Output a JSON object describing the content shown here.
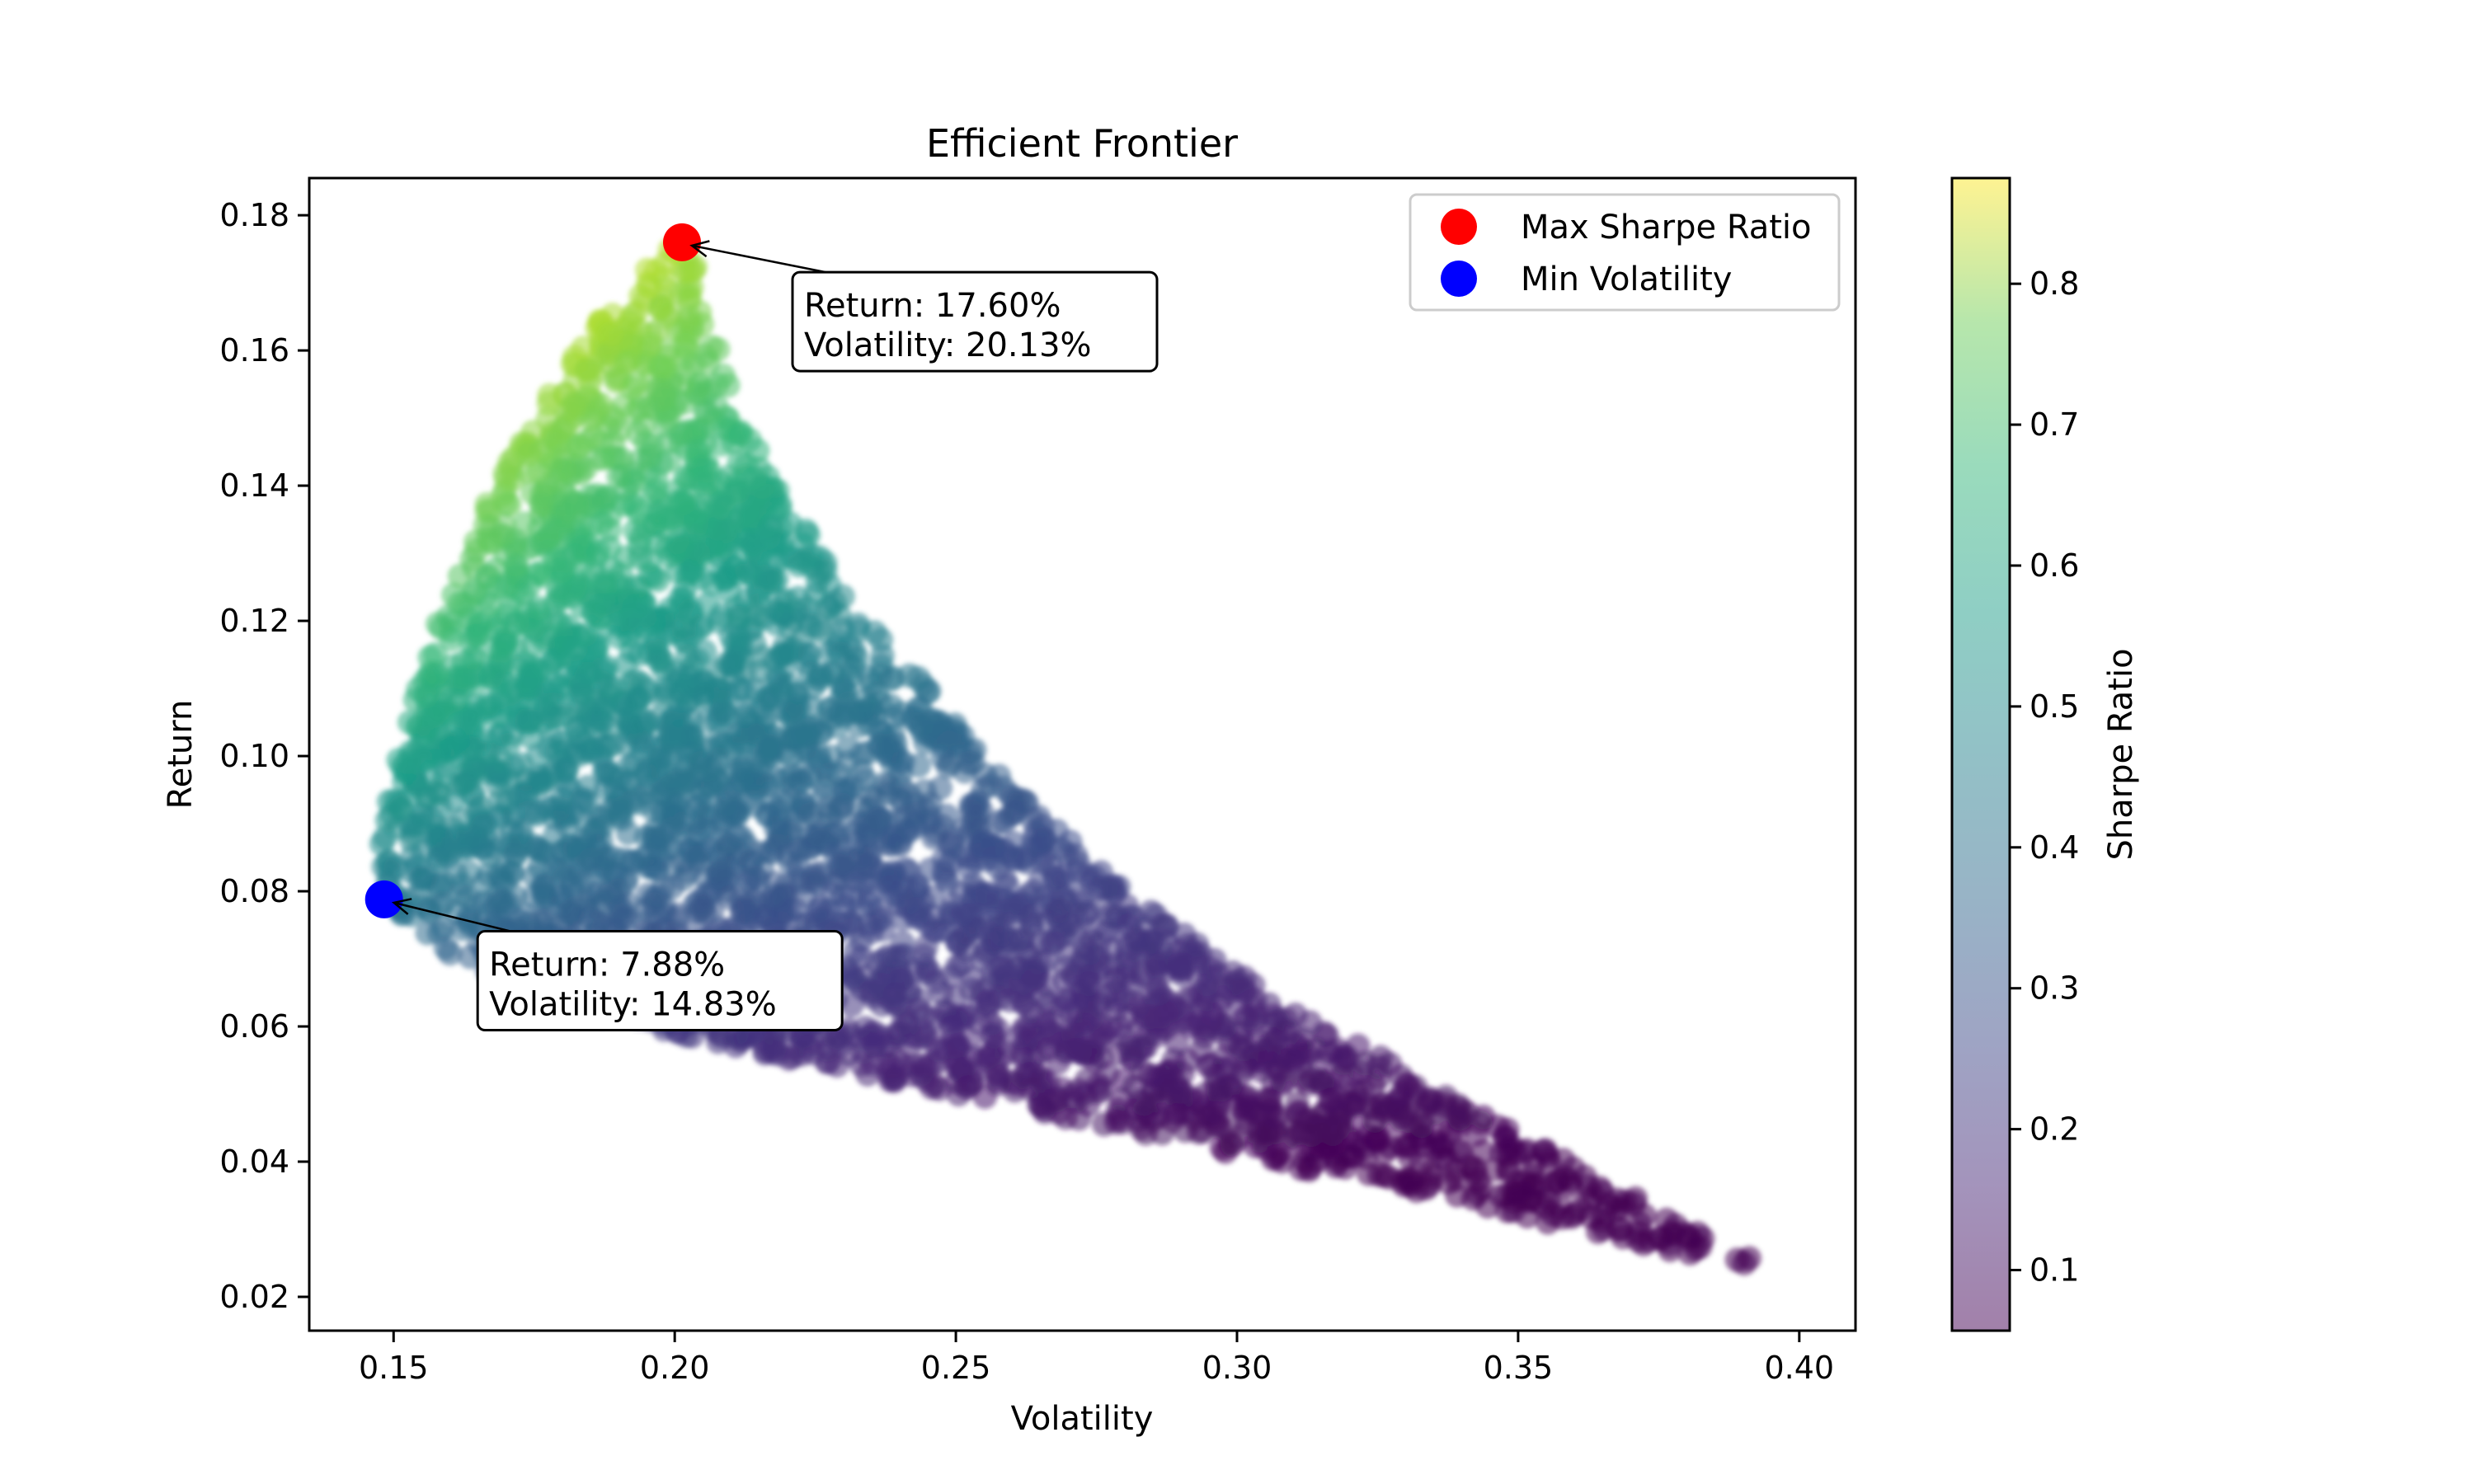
{
  "chart_data": {
    "type": "scatter",
    "title": "Efficient Frontier",
    "xlabel": "Volatility",
    "ylabel": "Return",
    "xlim": [
      0.135,
      0.41
    ],
    "ylim": [
      0.015,
      0.1855
    ],
    "x_ticks": [
      0.15,
      0.2,
      0.25,
      0.3,
      0.35,
      0.4
    ],
    "x_tick_labels": [
      "0.15",
      "0.20",
      "0.25",
      "0.30",
      "0.35",
      "0.40"
    ],
    "y_ticks": [
      0.02,
      0.04,
      0.06,
      0.08,
      0.1,
      0.12,
      0.14,
      0.16,
      0.18
    ],
    "y_tick_labels": [
      "0.02",
      "0.04",
      "0.06",
      "0.08",
      "0.10",
      "0.12",
      "0.14",
      "0.16",
      "0.18"
    ],
    "grid": false,
    "colormap": "viridis",
    "point_alpha": 0.5,
    "cloud_outline": [
      [
        0.1483,
        0.0788
      ],
      [
        0.153,
        0.074
      ],
      [
        0.165,
        0.068
      ],
      [
        0.185,
        0.062
      ],
      [
        0.21,
        0.057
      ],
      [
        0.25,
        0.05
      ],
      [
        0.3,
        0.041
      ],
      [
        0.35,
        0.032
      ],
      [
        0.38,
        0.026
      ],
      [
        0.3958,
        0.023
      ],
      [
        0.39,
        0.0265
      ],
      [
        0.37,
        0.035
      ],
      [
        0.35,
        0.044
      ],
      [
        0.32,
        0.058
      ],
      [
        0.3,
        0.068
      ],
      [
        0.28,
        0.08
      ],
      [
        0.26,
        0.096
      ],
      [
        0.245,
        0.11
      ],
      [
        0.23,
        0.125
      ],
      [
        0.22,
        0.138
      ],
      [
        0.212,
        0.15
      ],
      [
        0.207,
        0.162
      ],
      [
        0.204,
        0.172
      ],
      [
        0.2025,
        0.178
      ],
      [
        0.2005,
        0.1775
      ],
      [
        0.195,
        0.172
      ],
      [
        0.185,
        0.163
      ],
      [
        0.175,
        0.15
      ],
      [
        0.165,
        0.135
      ],
      [
        0.157,
        0.118
      ],
      [
        0.151,
        0.1
      ],
      [
        0.1475,
        0.088
      ],
      [
        0.1478,
        0.082
      ]
    ],
    "highlight_points": [
      {
        "name": "Max Sharpe Ratio",
        "x": 0.2013,
        "y": 0.176,
        "color": "#ff0000"
      },
      {
        "name": "Min Volatility",
        "x": 0.1483,
        "y": 0.0788,
        "color": "#0000ff"
      }
    ],
    "annotations": [
      {
        "lines": [
          "Return: 17.60%",
          "Volatility: 20.13%"
        ],
        "target_x": 0.2013,
        "target_y": 0.176,
        "text_x": 0.223,
        "text_y": 0.165
      },
      {
        "lines": [
          "Return: 7.88%",
          "Volatility: 14.83%"
        ],
        "target_x": 0.1483,
        "target_y": 0.0788,
        "text_x": 0.167,
        "text_y": 0.0675
      }
    ],
    "legend": {
      "position": "upper right",
      "entries": [
        "Max Sharpe Ratio",
        "Min Volatility"
      ]
    },
    "colorbar": {
      "label": "Sharpe Ratio",
      "range": [
        0.057,
        0.875
      ],
      "ticks": [
        0.1,
        0.2,
        0.3,
        0.4,
        0.5,
        0.6,
        0.7,
        0.8
      ],
      "tick_labels": [
        "0.1",
        "0.2",
        "0.3",
        "0.4",
        "0.5",
        "0.6",
        "0.7",
        "0.8"
      ]
    }
  }
}
